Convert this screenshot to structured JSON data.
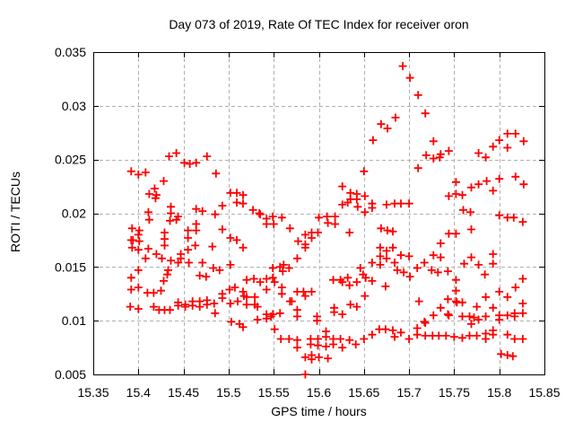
{
  "chart_data": {
    "type": "scatter",
    "title": "Day 073 of 2019, Rate Of TEC Index for receiver oron",
    "xlabel": "GPS time / hours",
    "ylabel": "ROTI / TECUs",
    "xlim": [
      15.35,
      15.85
    ],
    "ylim": [
      0.005,
      0.035
    ],
    "xticks": [
      15.35,
      15.4,
      15.45,
      15.5,
      15.55,
      15.6,
      15.65,
      15.7,
      15.75,
      15.8,
      15.85
    ],
    "xtick_labels": [
      "15.35",
      "15.4",
      "15.45",
      "15.5",
      "15.55",
      "15.6",
      "15.65",
      "15.7",
      "15.75",
      "15.8",
      "15.85"
    ],
    "yticks": [
      0.005,
      0.01,
      0.015,
      0.02,
      0.025,
      0.03,
      0.035
    ],
    "ytick_labels": [
      "0.005",
      "0.01",
      "0.015",
      "0.02",
      "0.025",
      "0.03",
      "0.035"
    ],
    "grid": true,
    "legend": "none",
    "marker": {
      "shape": "plus",
      "color": "#ff0000",
      "size": 4.5,
      "stroke_width": 1.8
    },
    "grid_color": "#b0b0b0",
    "axis_color": "#000000",
    "points": [
      [
        15.434,
        0.0253
      ],
      [
        15.442,
        0.0256
      ],
      [
        15.476,
        0.0253
      ],
      [
        15.669,
        0.0283
      ],
      [
        15.676,
        0.0279
      ],
      [
        15.685,
        0.0289
      ],
      [
        15.66,
        0.0268
      ],
      [
        15.693,
        0.0337
      ],
      [
        15.701,
        0.0326
      ],
      [
        15.71,
        0.031
      ],
      [
        15.718,
        0.0293
      ],
      [
        15.727,
        0.0267
      ],
      [
        15.719,
        0.0254
      ],
      [
        15.727,
        0.0251
      ],
      [
        15.734,
        0.0252
      ],
      [
        15.735,
        0.0255
      ],
      [
        15.744,
        0.0258
      ],
      [
        15.777,
        0.0256
      ],
      [
        15.785,
        0.0252
      ],
      [
        15.793,
        0.0262
      ],
      [
        15.8,
        0.0268
      ],
      [
        15.809,
        0.0274
      ],
      [
        15.809,
        0.0261
      ],
      [
        15.818,
        0.0274
      ],
      [
        15.827,
        0.0267
      ],
      [
        15.451,
        0.0247
      ],
      [
        15.457,
        0.0246
      ],
      [
        15.464,
        0.0247
      ],
      [
        15.486,
        0.0237
      ],
      [
        15.392,
        0.0239
      ],
      [
        15.4,
        0.0236
      ],
      [
        15.408,
        0.0238
      ],
      [
        15.428,
        0.023
      ],
      [
        15.418,
        0.0223
      ],
      [
        15.42,
        0.0217
      ],
      [
        15.412,
        0.0218
      ],
      [
        15.419,
        0.0214
      ],
      [
        15.436,
        0.0206
      ],
      [
        15.411,
        0.0201
      ],
      [
        15.412,
        0.0194
      ],
      [
        15.435,
        0.0193
      ],
      [
        15.442,
        0.0194
      ],
      [
        15.444,
        0.0197
      ],
      [
        15.393,
        0.0186
      ],
      [
        15.401,
        0.0184
      ],
      [
        15.4,
        0.018
      ],
      [
        15.392,
        0.0175
      ],
      [
        15.394,
        0.0175
      ],
      [
        15.401,
        0.0174
      ],
      [
        15.393,
        0.0168
      ],
      [
        15.4,
        0.0166
      ],
      [
        15.411,
        0.0167
      ],
      [
        15.42,
        0.0162
      ],
      [
        15.429,
        0.0182
      ],
      [
        15.429,
        0.0176
      ],
      [
        15.429,
        0.017
      ],
      [
        15.408,
        0.0158
      ],
      [
        15.426,
        0.0158
      ],
      [
        15.436,
        0.0156
      ],
      [
        15.444,
        0.0154
      ],
      [
        15.436,
        0.02
      ],
      [
        15.464,
        0.0204
      ],
      [
        15.471,
        0.0202
      ],
      [
        15.464,
        0.019
      ],
      [
        15.485,
        0.0199
      ],
      [
        15.493,
        0.0207
      ],
      [
        15.502,
        0.0219
      ],
      [
        15.509,
        0.0219
      ],
      [
        15.516,
        0.0217
      ],
      [
        15.509,
        0.021
      ],
      [
        15.516,
        0.0209
      ],
      [
        15.493,
        0.0185
      ],
      [
        15.502,
        0.0177
      ],
      [
        15.509,
        0.0175
      ],
      [
        15.516,
        0.0168
      ],
      [
        15.464,
        0.0184
      ],
      [
        15.455,
        0.0184
      ],
      [
        15.455,
        0.0177
      ],
      [
        15.463,
        0.017
      ],
      [
        15.455,
        0.0166
      ],
      [
        15.447,
        0.0162
      ],
      [
        15.447,
        0.0158
      ],
      [
        15.456,
        0.0154
      ],
      [
        15.471,
        0.0154
      ],
      [
        15.482,
        0.0169
      ],
      [
        15.502,
        0.0152
      ],
      [
        15.527,
        0.0203
      ],
      [
        15.534,
        0.02
      ],
      [
        15.535,
        0.0199
      ],
      [
        15.542,
        0.0195
      ],
      [
        15.542,
        0.019
      ],
      [
        15.549,
        0.0197
      ],
      [
        15.55,
        0.019
      ],
      [
        15.559,
        0.0196
      ],
      [
        15.568,
        0.0186
      ],
      [
        15.585,
        0.018
      ],
      [
        15.592,
        0.0182
      ],
      [
        15.599,
        0.0182
      ],
      [
        15.592,
        0.0177
      ],
      [
        15.577,
        0.0174
      ],
      [
        15.585,
        0.0171
      ],
      [
        15.585,
        0.0168
      ],
      [
        15.576,
        0.0158
      ],
      [
        15.561,
        0.0152
      ],
      [
        15.557,
        0.015
      ],
      [
        15.6,
        0.0196
      ],
      [
        15.609,
        0.0197
      ],
      [
        15.61,
        0.0191
      ],
      [
        15.618,
        0.019
      ],
      [
        15.618,
        0.0197
      ],
      [
        15.626,
        0.0225
      ],
      [
        15.635,
        0.0219
      ],
      [
        15.635,
        0.0213
      ],
      [
        15.626,
        0.0208
      ],
      [
        15.632,
        0.021
      ],
      [
        15.642,
        0.0218
      ],
      [
        15.642,
        0.0213
      ],
      [
        15.643,
        0.0206
      ],
      [
        15.65,
        0.0239
      ],
      [
        15.651,
        0.0216
      ],
      [
        15.651,
        0.0201
      ],
      [
        15.659,
        0.0209
      ],
      [
        15.659,
        0.0205
      ],
      [
        15.634,
        0.0182
      ],
      [
        15.675,
        0.0208
      ],
      [
        15.669,
        0.0186
      ],
      [
        15.676,
        0.0184
      ],
      [
        15.682,
        0.0183
      ],
      [
        15.668,
        0.0168
      ],
      [
        15.675,
        0.0165
      ],
      [
        15.668,
        0.016
      ],
      [
        15.675,
        0.0158
      ],
      [
        15.682,
        0.0168
      ],
      [
        15.668,
        0.0152
      ],
      [
        15.659,
        0.0154
      ],
      [
        15.71,
        0.0242
      ],
      [
        15.752,
        0.0229
      ],
      [
        15.744,
        0.0216
      ],
      [
        15.752,
        0.0218
      ],
      [
        15.759,
        0.0217
      ],
      [
        15.769,
        0.0224
      ],
      [
        15.777,
        0.0227
      ],
      [
        15.786,
        0.023
      ],
      [
        15.793,
        0.0221
      ],
      [
        15.8,
        0.0232
      ],
      [
        15.818,
        0.0234
      ],
      [
        15.827,
        0.0227
      ],
      [
        15.684,
        0.0209
      ],
      [
        15.691,
        0.0209
      ],
      [
        15.7,
        0.0209
      ],
      [
        15.76,
        0.0203
      ],
      [
        15.768,
        0.0201
      ],
      [
        15.8,
        0.0198
      ],
      [
        15.809,
        0.0196
      ],
      [
        15.816,
        0.0196
      ],
      [
        15.826,
        0.0192
      ],
      [
        15.769,
        0.0185
      ],
      [
        15.744,
        0.0181
      ],
      [
        15.752,
        0.0181
      ],
      [
        15.735,
        0.0172
      ],
      [
        15.691,
        0.0161
      ],
      [
        15.7,
        0.016
      ],
      [
        15.717,
        0.0154
      ],
      [
        15.727,
        0.0161
      ],
      [
        15.735,
        0.0159
      ],
      [
        15.769,
        0.0159
      ],
      [
        15.761,
        0.0153
      ],
      [
        15.777,
        0.0152
      ],
      [
        15.793,
        0.0162
      ],
      [
        15.793,
        0.0153
      ],
      [
        15.684,
        0.0154
      ],
      [
        15.392,
        0.014
      ],
      [
        15.4,
        0.0147
      ],
      [
        15.433,
        0.0147
      ],
      [
        15.392,
        0.0129
      ],
      [
        15.4,
        0.0131
      ],
      [
        15.41,
        0.0126
      ],
      [
        15.417,
        0.0126
      ],
      [
        15.425,
        0.0128
      ],
      [
        15.428,
        0.0137
      ],
      [
        15.432,
        0.0143
      ],
      [
        15.391,
        0.0113
      ],
      [
        15.4,
        0.0111
      ],
      [
        15.417,
        0.0113
      ],
      [
        15.423,
        0.011
      ],
      [
        15.429,
        0.011
      ],
      [
        15.435,
        0.011
      ],
      [
        15.444,
        0.0117
      ],
      [
        15.444,
        0.0114
      ],
      [
        15.452,
        0.0115
      ],
      [
        15.452,
        0.0113
      ],
      [
        15.46,
        0.0118
      ],
      [
        15.46,
        0.0114
      ],
      [
        15.468,
        0.0118
      ],
      [
        15.468,
        0.0113
      ],
      [
        15.476,
        0.0119
      ],
      [
        15.476,
        0.0115
      ],
      [
        15.468,
        0.0142
      ],
      [
        15.475,
        0.0141
      ],
      [
        15.483,
        0.0149
      ],
      [
        15.49,
        0.0147
      ],
      [
        15.484,
        0.0116
      ],
      [
        15.485,
        0.0107
      ],
      [
        15.493,
        0.0121
      ],
      [
        15.493,
        0.0125
      ],
      [
        15.501,
        0.0129
      ],
      [
        15.502,
        0.0116
      ],
      [
        15.51,
        0.0118
      ],
      [
        15.507,
        0.0131
      ],
      [
        15.516,
        0.0127
      ],
      [
        15.512,
        0.0097
      ],
      [
        15.503,
        0.0099
      ],
      [
        15.516,
        0.0094
      ],
      [
        15.52,
        0.0138
      ],
      [
        15.528,
        0.0139
      ],
      [
        15.535,
        0.0136
      ],
      [
        15.542,
        0.0139
      ],
      [
        15.549,
        0.014
      ],
      [
        15.551,
        0.0136
      ],
      [
        15.549,
        0.0149
      ],
      [
        15.56,
        0.0146
      ],
      [
        15.567,
        0.0149
      ],
      [
        15.517,
        0.0123
      ],
      [
        15.52,
        0.0122
      ],
      [
        15.529,
        0.0122
      ],
      [
        15.52,
        0.0115
      ],
      [
        15.529,
        0.0115
      ],
      [
        15.532,
        0.0113
      ],
      [
        15.542,
        0.0129
      ],
      [
        15.559,
        0.0131
      ],
      [
        15.559,
        0.0125
      ],
      [
        15.568,
        0.0118
      ],
      [
        15.57,
        0.0118
      ],
      [
        15.576,
        0.0127
      ],
      [
        15.583,
        0.0127
      ],
      [
        15.585,
        0.0123
      ],
      [
        15.592,
        0.0127
      ],
      [
        15.576,
        0.011
      ],
      [
        15.576,
        0.0104
      ],
      [
        15.542,
        0.0106
      ],
      [
        15.542,
        0.0102
      ],
      [
        15.547,
        0.0104
      ],
      [
        15.549,
        0.0106
      ],
      [
        15.557,
        0.0107
      ],
      [
        15.532,
        0.0101
      ],
      [
        15.551,
        0.0092
      ],
      [
        15.598,
        0.0104
      ],
      [
        15.598,
        0.01
      ],
      [
        15.558,
        0.0083
      ],
      [
        15.567,
        0.0083
      ],
      [
        15.576,
        0.0082
      ],
      [
        15.576,
        0.0075
      ],
      [
        15.585,
        0.0066
      ],
      [
        15.592,
        0.0068
      ],
      [
        15.592,
        0.0064
      ],
      [
        15.6,
        0.0066
      ],
      [
        15.61,
        0.0065
      ],
      [
        15.585,
        0.005
      ],
      [
        15.591,
        0.0078
      ],
      [
        15.599,
        0.0077
      ],
      [
        15.599,
        0.0083
      ],
      [
        15.591,
        0.0083
      ],
      [
        15.608,
        0.0085
      ],
      [
        15.608,
        0.009
      ],
      [
        15.608,
        0.0076
      ],
      [
        15.616,
        0.0083
      ],
      [
        15.616,
        0.0078
      ],
      [
        15.624,
        0.0083
      ],
      [
        15.626,
        0.0075
      ],
      [
        15.634,
        0.0082
      ],
      [
        15.641,
        0.0078
      ],
      [
        15.65,
        0.0083
      ],
      [
        15.659,
        0.0087
      ],
      [
        15.667,
        0.0092
      ],
      [
        15.674,
        0.0092
      ],
      [
        15.682,
        0.0091
      ],
      [
        15.651,
        0.0123
      ],
      [
        15.616,
        0.0138
      ],
      [
        15.624,
        0.0138
      ],
      [
        15.626,
        0.0136
      ],
      [
        15.632,
        0.014
      ],
      [
        15.634,
        0.0133
      ],
      [
        15.642,
        0.0136
      ],
      [
        15.649,
        0.0143
      ],
      [
        15.652,
        0.014
      ],
      [
        15.659,
        0.0137
      ],
      [
        15.646,
        0.0149
      ],
      [
        15.674,
        0.0132
      ],
      [
        15.617,
        0.0112
      ],
      [
        15.617,
        0.0108
      ],
      [
        15.626,
        0.0106
      ],
      [
        15.635,
        0.0115
      ],
      [
        15.642,
        0.0113
      ],
      [
        15.687,
        0.0147
      ],
      [
        15.694,
        0.0145
      ],
      [
        15.701,
        0.0141
      ],
      [
        15.709,
        0.0149
      ],
      [
        15.725,
        0.0147
      ],
      [
        15.732,
        0.0145
      ],
      [
        15.743,
        0.0146
      ],
      [
        15.752,
        0.0138
      ],
      [
        15.752,
        0.0128
      ],
      [
        15.784,
        0.0143
      ],
      [
        15.826,
        0.0139
      ],
      [
        15.818,
        0.0131
      ],
      [
        15.8,
        0.0127
      ],
      [
        15.809,
        0.0122
      ],
      [
        15.785,
        0.0122
      ],
      [
        15.711,
        0.0118
      ],
      [
        15.735,
        0.0112
      ],
      [
        15.743,
        0.012
      ],
      [
        15.743,
        0.0106
      ],
      [
        15.752,
        0.0118
      ],
      [
        15.753,
        0.0117
      ],
      [
        15.759,
        0.0117
      ],
      [
        15.727,
        0.0105
      ],
      [
        15.744,
        0.0105
      ],
      [
        15.775,
        0.0113
      ],
      [
        15.793,
        0.0112
      ],
      [
        15.759,
        0.0104
      ],
      [
        15.767,
        0.0104
      ],
      [
        15.772,
        0.0103
      ],
      [
        15.769,
        0.0097
      ],
      [
        15.777,
        0.0101
      ],
      [
        15.785,
        0.0104
      ],
      [
        15.8,
        0.0105
      ],
      [
        15.8,
        0.0101
      ],
      [
        15.809,
        0.0105
      ],
      [
        15.817,
        0.0107
      ],
      [
        15.817,
        0.0104
      ],
      [
        15.826,
        0.0116
      ],
      [
        15.826,
        0.0107
      ],
      [
        15.691,
        0.0089
      ],
      [
        15.7,
        0.0083
      ],
      [
        15.709,
        0.0093
      ],
      [
        15.717,
        0.0099
      ],
      [
        15.718,
        0.0098
      ],
      [
        15.709,
        0.0087
      ],
      [
        15.718,
        0.0086
      ],
      [
        15.726,
        0.0086
      ],
      [
        15.733,
        0.0086
      ],
      [
        15.741,
        0.0086
      ],
      [
        15.75,
        0.0085
      ],
      [
        15.759,
        0.0084
      ],
      [
        15.767,
        0.0086
      ],
      [
        15.775,
        0.0086
      ],
      [
        15.785,
        0.0088
      ],
      [
        15.785,
        0.0083
      ],
      [
        15.793,
        0.0091
      ],
      [
        15.793,
        0.0087
      ],
      [
        15.809,
        0.0087
      ],
      [
        15.817,
        0.0083
      ],
      [
        15.826,
        0.0083
      ],
      [
        15.802,
        0.0069
      ],
      [
        15.809,
        0.0068
      ],
      [
        15.815,
        0.0067
      ],
      [
        15.684,
        0.0085
      ]
    ]
  }
}
